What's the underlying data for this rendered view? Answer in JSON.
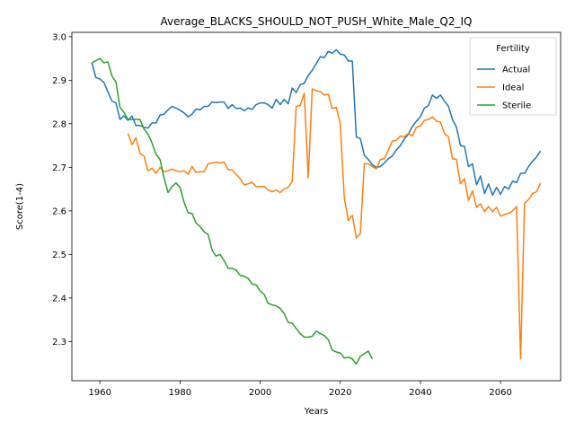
{
  "chart_data": {
    "type": "line",
    "title": "Average_BLACKS_SHOULD_NOT_PUSH_White_Male_Q2_IQ",
    "xlabel": "Years",
    "ylabel": "Score(1-4)",
    "xlim": [
      1953,
      2075
    ],
    "ylim": [
      2.21,
      3.01
    ],
    "xticks": [
      1960,
      1980,
      2000,
      2020,
      2040,
      2060
    ],
    "yticks": [
      2.3,
      2.4,
      2.5,
      2.6,
      2.7,
      2.8,
      2.9,
      3.0
    ],
    "grid": false,
    "legend": {
      "title": "Fertility",
      "placement": "top-right"
    },
    "series": [
      {
        "name": "Actual",
        "color": "#1f77b4",
        "x": [
          1958,
          1959,
          1960,
          1961,
          1962,
          1963,
          1964,
          1965,
          1966,
          1967,
          1968,
          1969,
          1970,
          1971,
          1972,
          1973,
          1974,
          1975,
          1976,
          1977,
          1978,
          1979,
          1980,
          1981,
          1982,
          1983,
          1984,
          1985,
          1986,
          1987,
          1988,
          1989,
          1990,
          1991,
          1992,
          1993,
          1994,
          1995,
          1996,
          1997,
          1998,
          1999,
          2000,
          2001,
          2002,
          2003,
          2004,
          2005,
          2006,
          2007,
          2008,
          2009,
          2010,
          2011,
          2012,
          2013,
          2014,
          2015,
          2016,
          2017,
          2018,
          2019,
          2020,
          2021,
          2022,
          2023,
          2024,
          2025,
          2026,
          2027,
          2028,
          2029,
          2030,
          2031,
          2032,
          2033,
          2034,
          2035,
          2036,
          2037,
          2038,
          2039,
          2040,
          2041,
          2042,
          2043,
          2044,
          2045,
          2046,
          2047,
          2048,
          2049,
          2050,
          2051,
          2052,
          2053,
          2054,
          2055,
          2056,
          2057,
          2058,
          2059,
          2060,
          2061,
          2062,
          2063,
          2064,
          2065,
          2066,
          2067,
          2068,
          2069,
          2070
        ],
        "values": [
          2.94,
          2.906,
          2.903,
          2.895,
          2.873,
          2.852,
          2.848,
          2.81,
          2.818,
          2.808,
          2.818,
          2.796,
          2.796,
          2.792,
          2.79,
          2.802,
          2.802,
          2.82,
          2.822,
          2.832,
          2.84,
          2.836,
          2.831,
          2.825,
          2.816,
          2.822,
          2.834,
          2.832,
          2.84,
          2.84,
          2.85,
          2.849,
          2.85,
          2.85,
          2.835,
          2.844,
          2.835,
          2.836,
          2.83,
          2.836,
          2.833,
          2.844,
          2.848,
          2.848,
          2.844,
          2.836,
          2.856,
          2.844,
          2.856,
          2.846,
          2.882,
          2.872,
          2.89,
          2.893,
          2.911,
          2.923,
          2.938,
          2.954,
          2.952,
          2.966,
          2.962,
          2.97,
          2.96,
          2.958,
          2.944,
          2.944,
          2.77,
          2.766,
          2.728,
          2.718,
          2.706,
          2.7,
          2.702,
          2.71,
          2.72,
          2.726,
          2.74,
          2.75,
          2.765,
          2.776,
          2.794,
          2.806,
          2.816,
          2.836,
          2.842,
          2.866,
          2.858,
          2.866,
          2.852,
          2.84,
          2.81,
          2.792,
          2.75,
          2.748,
          2.702,
          2.708,
          2.66,
          2.68,
          2.64,
          2.662,
          2.636,
          2.654,
          2.638,
          2.656,
          2.65,
          2.668,
          2.665,
          2.686,
          2.686,
          2.702,
          2.714,
          2.724,
          2.738
        ]
      },
      {
        "name": "Ideal",
        "color": "#ff7f0e",
        "x": [
          1967,
          1968,
          1969,
          1970,
          1971,
          1972,
          1973,
          1974,
          1975,
          1976,
          1977,
          1978,
          1979,
          1980,
          1981,
          1982,
          1983,
          1984,
          1985,
          1986,
          1987,
          1988,
          1989,
          1990,
          1991,
          1992,
          1993,
          1994,
          1995,
          1996,
          1997,
          1998,
          1999,
          2000,
          2001,
          2002,
          2003,
          2004,
          2005,
          2006,
          2007,
          2008,
          2009,
          2010,
          2011,
          2012,
          2013,
          2014,
          2015,
          2016,
          2017,
          2018,
          2019,
          2020,
          2021,
          2022,
          2023,
          2024,
          2025,
          2026,
          2027,
          2028,
          2029,
          2030,
          2031,
          2032,
          2033,
          2034,
          2035,
          2036,
          2037,
          2038,
          2039,
          2040,
          2041,
          2042,
          2043,
          2044,
          2045,
          2046,
          2047,
          2048,
          2049,
          2050,
          2051,
          2052,
          2053,
          2054,
          2055,
          2056,
          2057,
          2058,
          2059,
          2060,
          2061,
          2062,
          2063,
          2064,
          2065,
          2066,
          2067,
          2068,
          2069,
          2070
        ],
        "values": [
          2.778,
          2.752,
          2.768,
          2.732,
          2.726,
          2.692,
          2.698,
          2.686,
          2.7,
          2.69,
          2.692,
          2.696,
          2.692,
          2.69,
          2.692,
          2.684,
          2.702,
          2.688,
          2.69,
          2.69,
          2.708,
          2.71,
          2.712,
          2.71,
          2.712,
          2.695,
          2.694,
          2.684,
          2.674,
          2.66,
          2.662,
          2.666,
          2.655,
          2.656,
          2.656,
          2.648,
          2.644,
          2.648,
          2.642,
          2.65,
          2.654,
          2.668,
          2.84,
          2.842,
          2.87,
          2.676,
          2.88,
          2.876,
          2.874,
          2.866,
          2.868,
          2.835,
          2.838,
          2.8,
          2.63,
          2.578,
          2.59,
          2.538,
          2.548,
          2.708,
          2.708,
          2.702,
          2.696,
          2.718,
          2.72,
          2.74,
          2.76,
          2.762,
          2.772,
          2.77,
          2.778,
          2.772,
          2.792,
          2.795,
          2.808,
          2.81,
          2.816,
          2.806,
          2.804,
          2.778,
          2.77,
          2.72,
          2.718,
          2.662,
          2.674,
          2.624,
          2.646,
          2.608,
          2.616,
          2.598,
          2.61,
          2.598,
          2.608,
          2.588,
          2.592,
          2.594,
          2.6,
          2.61,
          2.26,
          2.618,
          2.626,
          2.64,
          2.644,
          2.664
        ]
      },
      {
        "name": "Sterile",
        "color": "#2ca02c",
        "x": [
          1958,
          1959,
          1960,
          1961,
          1962,
          1963,
          1964,
          1965,
          1966,
          1967,
          1968,
          1969,
          1970,
          1971,
          1972,
          1973,
          1974,
          1975,
          1976,
          1977,
          1978,
          1979,
          1980,
          1981,
          1982,
          1983,
          1984,
          1985,
          1986,
          1987,
          1988,
          1989,
          1990,
          1991,
          1992,
          1993,
          1994,
          1995,
          1996,
          1997,
          1998,
          1999,
          2000,
          2001,
          2002,
          2003,
          2004,
          2005,
          2006,
          2007,
          2008,
          2009,
          2010,
          2011,
          2012,
          2013,
          2014,
          2015,
          2016,
          2017,
          2018,
          2019,
          2020,
          2021,
          2022,
          2023,
          2024,
          2025,
          2026,
          2027,
          2028
        ],
        "values": [
          2.94,
          2.945,
          2.95,
          2.94,
          2.942,
          2.91,
          2.896,
          2.838,
          2.826,
          2.81,
          2.81,
          2.81,
          2.81,
          2.788,
          2.776,
          2.756,
          2.73,
          2.718,
          2.676,
          2.642,
          2.656,
          2.664,
          2.654,
          2.62,
          2.596,
          2.594,
          2.572,
          2.564,
          2.552,
          2.546,
          2.51,
          2.496,
          2.5,
          2.486,
          2.468,
          2.468,
          2.464,
          2.452,
          2.45,
          2.445,
          2.432,
          2.43,
          2.416,
          2.408,
          2.388,
          2.384,
          2.382,
          2.376,
          2.364,
          2.344,
          2.342,
          2.33,
          2.318,
          2.31,
          2.31,
          2.312,
          2.324,
          2.318,
          2.314,
          2.304,
          2.28,
          2.276,
          2.274,
          2.262,
          2.264,
          2.26,
          2.248,
          2.266,
          2.272,
          2.278,
          2.26
        ]
      }
    ]
  }
}
